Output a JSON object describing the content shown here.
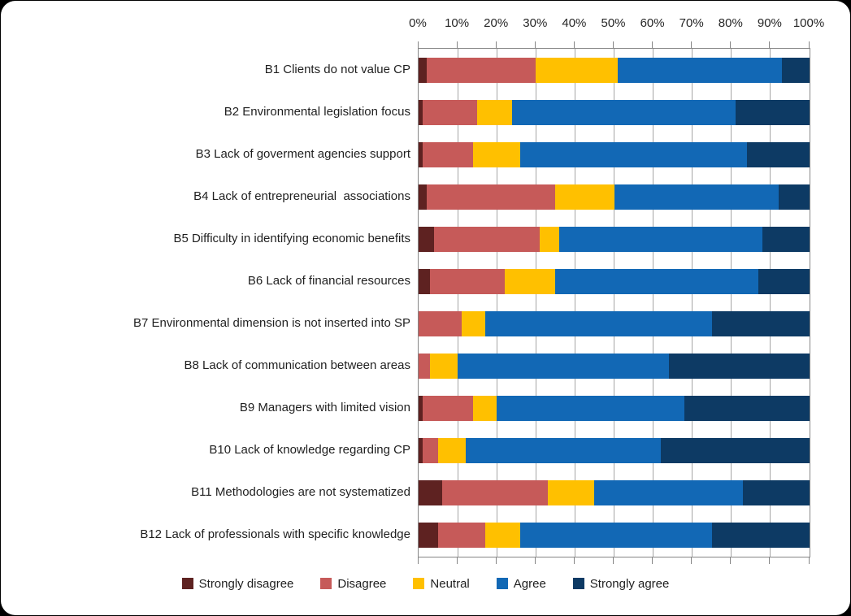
{
  "chart_data": {
    "type": "bar",
    "orientation": "horizontal",
    "stacked": true,
    "stack_total": 100,
    "unit": "%",
    "title": "",
    "xlabel": "",
    "ylabel": "",
    "xlim": [
      0,
      100
    ],
    "x_ticks": [
      "0%",
      "10%",
      "20%",
      "30%",
      "40%",
      "50%",
      "60%",
      "70%",
      "80%",
      "90%",
      "100%"
    ],
    "grid": true,
    "axis_position": "top",
    "legend_position": "bottom",
    "categories": [
      "B1 Clients do not value CP",
      "B2 Environmental legislation focus",
      "B3 Lack of goverment agencies support",
      "B4 Lack of entrepreneurial  associations",
      "B5 Difficulty in identifying economic benefits",
      "B6 Lack of financial resources",
      "B7 Environmental dimension is not inserted into SP",
      "B8 Lack of communication between areas",
      "B9 Managers with limited vision",
      "B10 Lack of knowledge regarding CP",
      "B11 Methodologies are not systematized",
      "B12 Lack of professionals with specific knowledge"
    ],
    "series": [
      {
        "name": "Strongly disagree",
        "color": "#5e2221",
        "values": [
          2,
          1,
          1,
          2,
          4,
          3,
          0,
          0,
          1,
          1,
          6,
          5
        ]
      },
      {
        "name": "Disagree",
        "color": "#c65a59",
        "values": [
          28,
          14,
          13,
          33,
          27,
          19,
          11,
          3,
          13,
          4,
          27,
          12
        ]
      },
      {
        "name": "Neutral",
        "color": "#ffc000",
        "values": [
          21,
          9,
          12,
          15,
          5,
          13,
          6,
          7,
          6,
          7,
          12,
          9
        ]
      },
      {
        "name": "Agree",
        "color": "#1268b5",
        "values": [
          42,
          57,
          58,
          42,
          52,
          52,
          58,
          54,
          48,
          50,
          38,
          49
        ]
      },
      {
        "name": "Strongly agree",
        "color": "#0d3a64",
        "values": [
          7,
          19,
          16,
          8,
          12,
          13,
          25,
          36,
          32,
          38,
          17,
          25
        ]
      }
    ],
    "style": {
      "gridline_color": "#a6a6a6",
      "plot_border_color": "#868686",
      "text_color": "#1f1f1f",
      "background_color": "#ffffff"
    }
  }
}
